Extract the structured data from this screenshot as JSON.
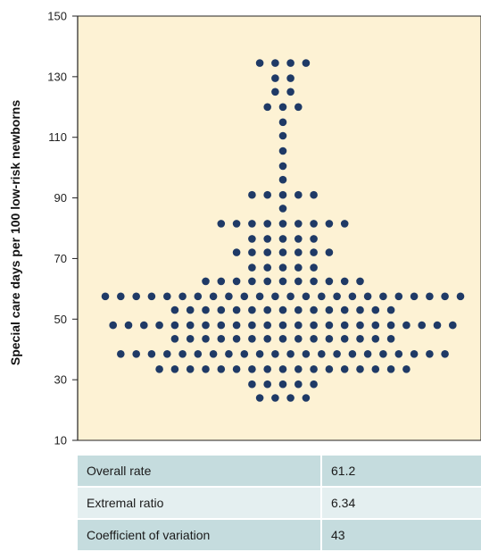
{
  "chart_data": {
    "type": "dot_strip",
    "ylabel": "Special care days per 100 low-risk newborns",
    "ylim": [
      10,
      150
    ],
    "yticks": [
      10,
      30,
      50,
      70,
      90,
      110,
      130,
      150
    ],
    "grid": false,
    "colors": {
      "dot": "#1f3a66",
      "plot_bg": "#fdf2d4",
      "axis": "#222222"
    },
    "points_per_level": [
      {
        "y": 24,
        "count": 4
      },
      {
        "y": 28.5,
        "count": 5
      },
      {
        "y": 33.5,
        "count": 17
      },
      {
        "y": 38.5,
        "count": 22
      },
      {
        "y": 43.5,
        "count": 15
      },
      {
        "y": 48,
        "count": 23
      },
      {
        "y": 53,
        "count": 15
      },
      {
        "y": 57.5,
        "count": 24
      },
      {
        "y": 62.5,
        "count": 11
      },
      {
        "y": 67,
        "count": 5
      },
      {
        "y": 72,
        "count": 7
      },
      {
        "y": 76.5,
        "count": 5
      },
      {
        "y": 81.5,
        "count": 9
      },
      {
        "y": 86.5,
        "count": 1
      },
      {
        "y": 91,
        "count": 5
      },
      {
        "y": 96,
        "count": 1
      },
      {
        "y": 100.5,
        "count": 1
      },
      {
        "y": 105.5,
        "count": 1
      },
      {
        "y": 110.5,
        "count": 1
      },
      {
        "y": 115,
        "count": 1
      },
      {
        "y": 120,
        "count": 3
      },
      {
        "y": 125,
        "count": 2
      },
      {
        "y": 129.5,
        "count": 2
      },
      {
        "y": 134.5,
        "count": 4
      }
    ]
  },
  "stats": [
    {
      "label": "Overall rate",
      "value": "61.2"
    },
    {
      "label": "Extremal ratio",
      "value": "6.34"
    },
    {
      "label": "Coefficient of variation",
      "value": "43"
    }
  ]
}
